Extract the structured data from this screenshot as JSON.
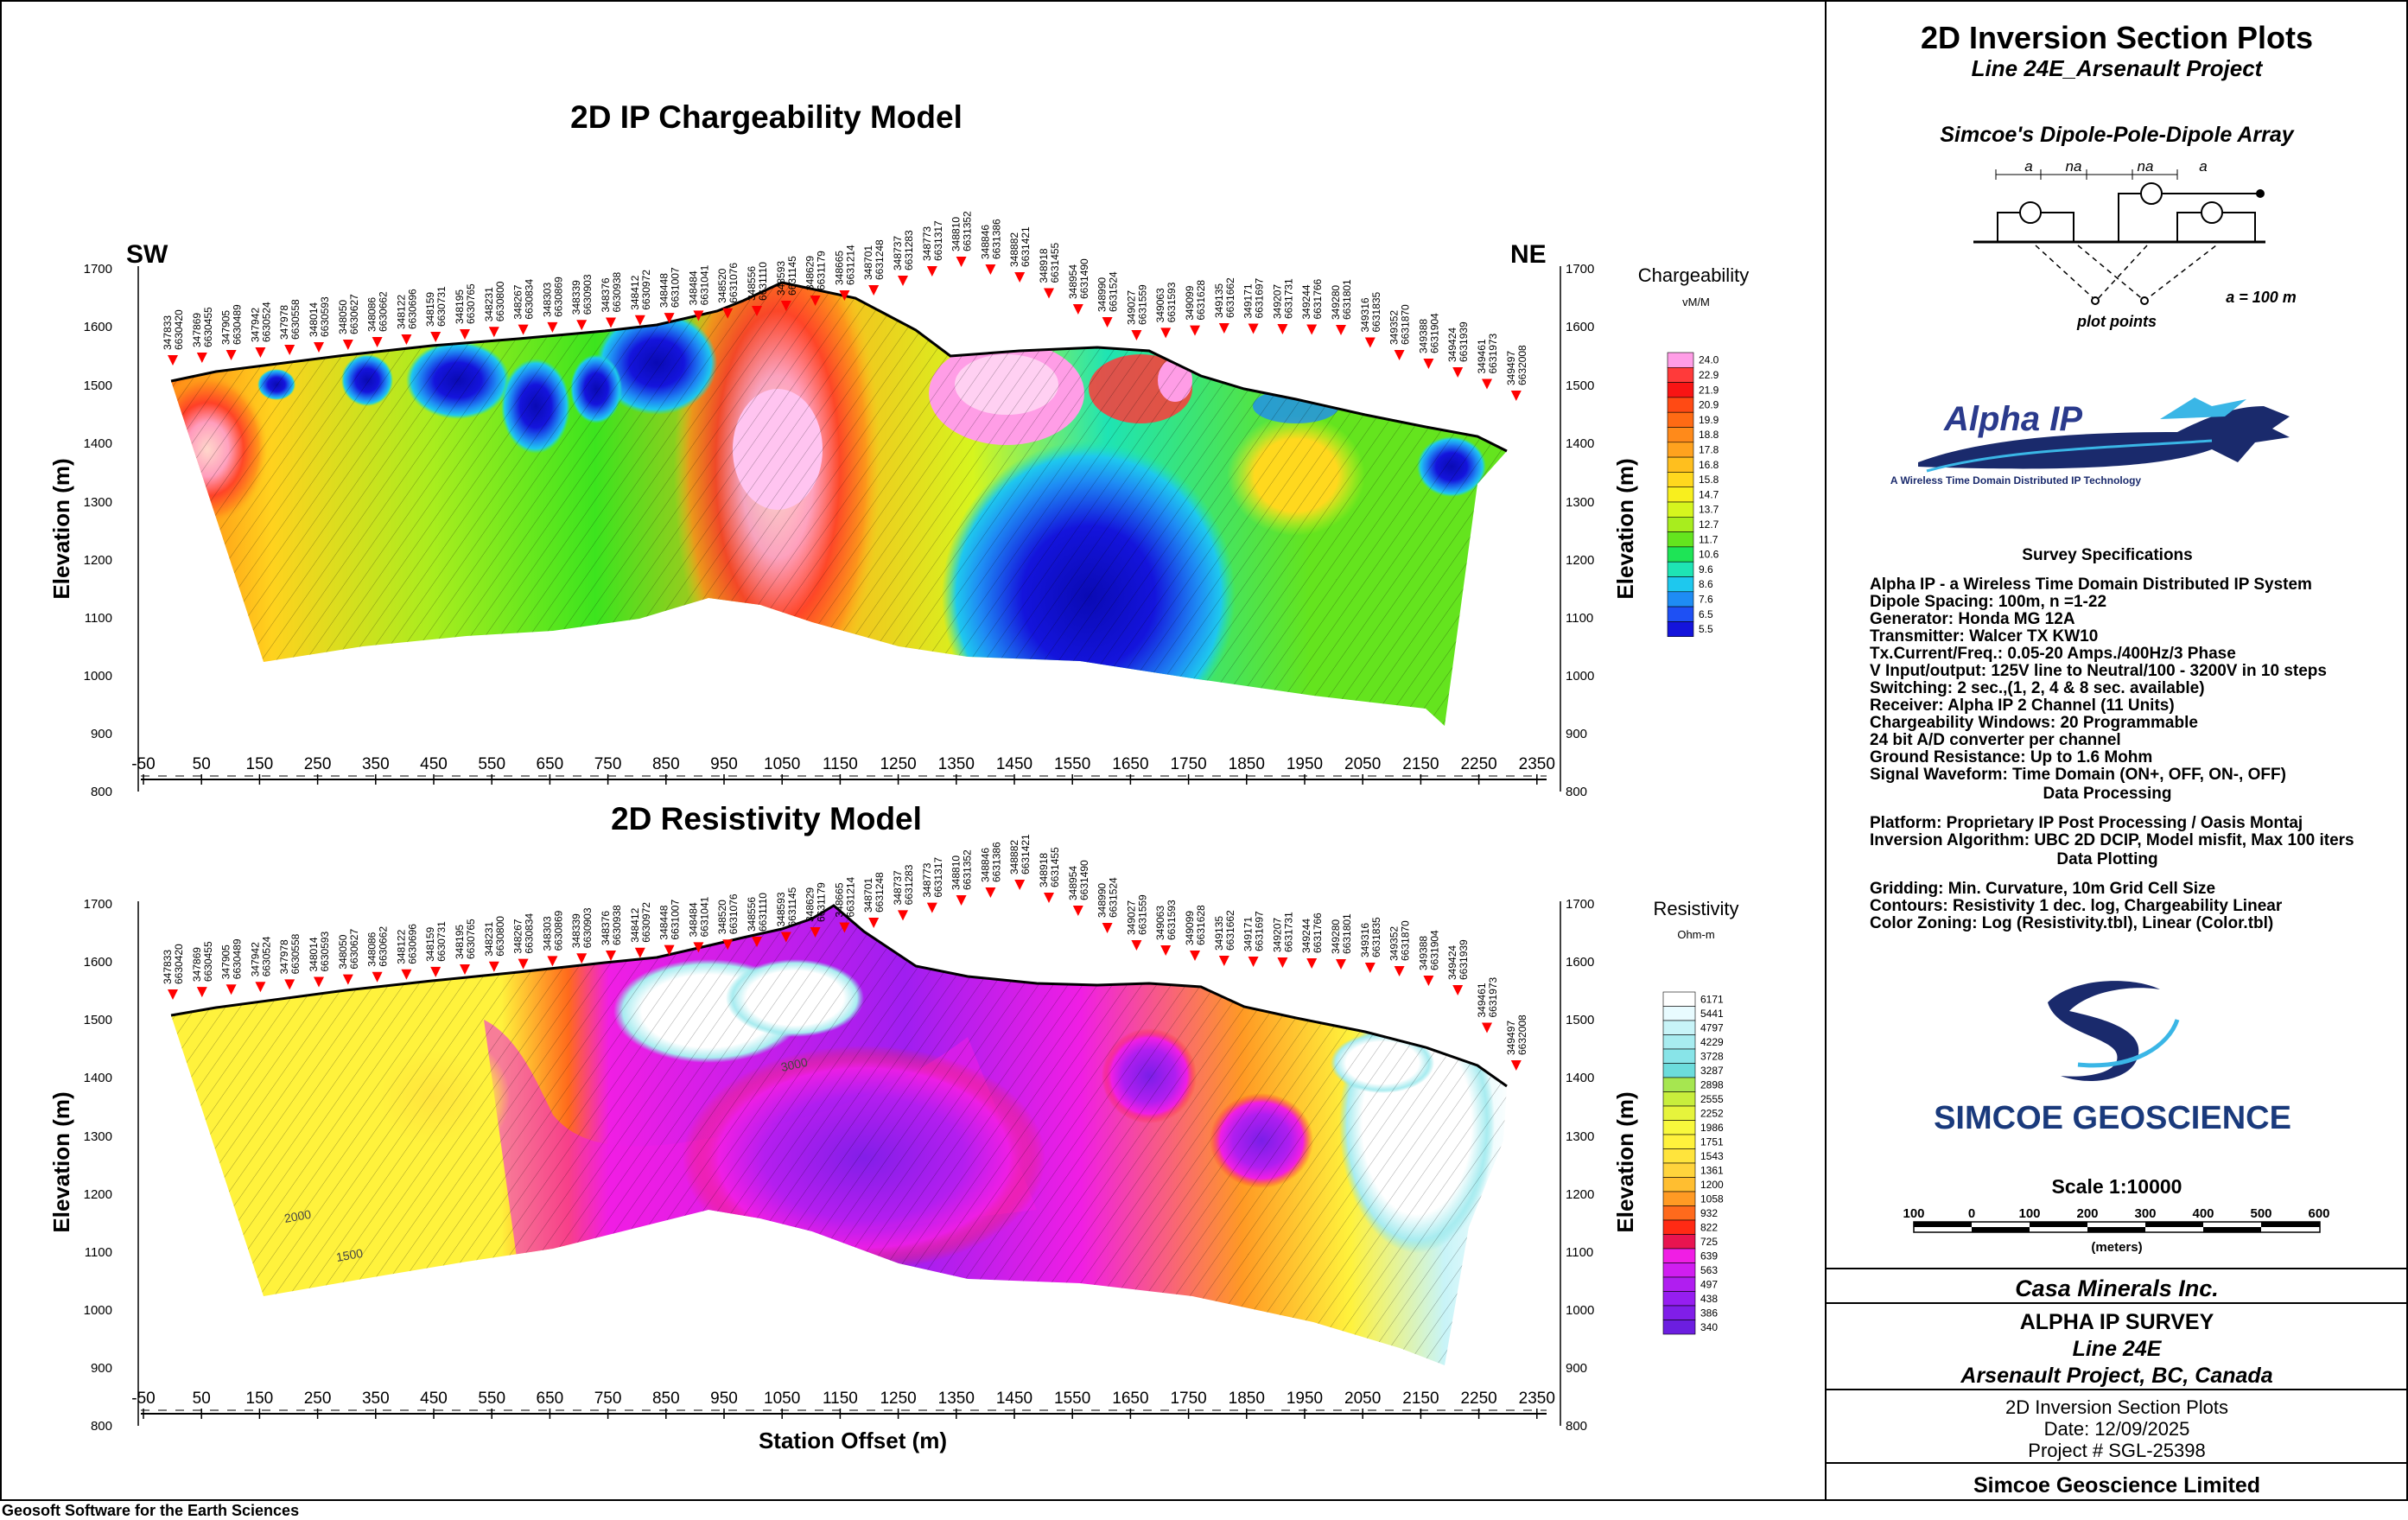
{
  "sheet": {
    "footer": "Geosoft Software for the Earth Sciences"
  },
  "chargeability_panel": {
    "title": "2D IP Chargeability Model",
    "left_label": "SW",
    "right_label": "NE",
    "ylabel": "Elevation (m)",
    "y_ticks": [
      "1700",
      "1600",
      "1500",
      "1400",
      "1300",
      "1200",
      "1100",
      "1000",
      "900",
      "800"
    ],
    "x_ticks": [
      "-50",
      "50",
      "150",
      "250",
      "350",
      "450",
      "550",
      "650",
      "750",
      "850",
      "950",
      "1050",
      "1150",
      "1250",
      "1350",
      "1450",
      "1550",
      "1650",
      "1750",
      "1850",
      "1950",
      "2050",
      "2150",
      "2250",
      "2350"
    ],
    "legend_title": "Chargeability",
    "legend_unit": "vM/M",
    "legend_values": [
      "24.0",
      "22.9",
      "21.9",
      "20.9",
      "19.9",
      "18.8",
      "17.8",
      "16.8",
      "15.8",
      "14.7",
      "13.7",
      "12.7",
      "11.7",
      "10.6",
      "9.6",
      "8.6",
      "7.6",
      "6.5",
      "5.5"
    ],
    "legend_colors": [
      "#ff9de6",
      "#ff3a3a",
      "#f81414",
      "#ff4a14",
      "#ff6a14",
      "#ff8a1a",
      "#ffa21e",
      "#ffbf1e",
      "#ffd81e",
      "#f8ef1e",
      "#d6f51e",
      "#a8ed1e",
      "#64e41e",
      "#1ee456",
      "#1ee4b4",
      "#1ec8ee",
      "#1e8cf4",
      "#1e50f4",
      "#1414dc"
    ]
  },
  "resistivity_panel": {
    "title": "2D Resistivity Model",
    "ylabel": "Elevation (m)",
    "xlabel": "Station Offset (m)",
    "y_ticks": [
      "1700",
      "1600",
      "1500",
      "1400",
      "1300",
      "1200",
      "1100",
      "1000",
      "900",
      "800"
    ],
    "x_ticks": [
      "-50",
      "50",
      "150",
      "250",
      "350",
      "450",
      "550",
      "650",
      "750",
      "850",
      "950",
      "1050",
      "1150",
      "1250",
      "1350",
      "1450",
      "1550",
      "1650",
      "1750",
      "1850",
      "1950",
      "2050",
      "2150",
      "2250",
      "2350"
    ],
    "legend_title": "Resistivity",
    "legend_unit": "Ohm-m",
    "legend_values": [
      "6171",
      "5441",
      "4797",
      "4229",
      "3728",
      "3287",
      "2898",
      "2555",
      "2252",
      "1986",
      "1751",
      "1543",
      "1361",
      "1200",
      "1058",
      "932",
      "822",
      "725",
      "639",
      "563",
      "497",
      "438",
      "386",
      "340"
    ],
    "legend_colors": [
      "#ffffff",
      "#e8fbff",
      "#c8f4f8",
      "#a8ecf0",
      "#88e4e8",
      "#6cdcdc",
      "#a6e650",
      "#c8ee3c",
      "#e6f43c",
      "#f8f83c",
      "#fff23c",
      "#ffe43c",
      "#ffd43c",
      "#ffbe30",
      "#ff9a24",
      "#ff6a1c",
      "#ff2a14",
      "#e81450",
      "#f01ee4",
      "#d01ef0",
      "#b01ef0",
      "#961ef0",
      "#801ee8",
      "#6c1ee0"
    ],
    "contour_labels": [
      "3000",
      "2000",
      "1500"
    ]
  },
  "stations": [
    "347833 6630420",
    "347869 6630455",
    "347905 6630489",
    "347942 6630524",
    "347978 6630558",
    "348014 6630593",
    "348050 6630627",
    "348086 6630662",
    "348122 6630696",
    "348159 6630731",
    "348195 6630765",
    "348231 6630800",
    "348267 6630834",
    "348303 6630869",
    "348339 6630903",
    "348376 6630938",
    "348412 6630972",
    "348448 6631007",
    "348484 6631041",
    "348520 6631076",
    "348556 6631110",
    "348593 6631145",
    "348629 6631179",
    "348665 6631214",
    "348701 6631248",
    "348737 6631283",
    "348773 6631317",
    "348810 6631352",
    "348846 6631386",
    "348882 6631421",
    "348918 6631455",
    "348954 6631490",
    "348990 6631524",
    "349027 6631559",
    "349063 6631593",
    "349099 6631628",
    "349135 6631662",
    "349171 6631697",
    "349207 6631731",
    "349244 6631766",
    "349280 6631801",
    "349316 6631835",
    "349352 6631870",
    "349388 6631904",
    "349424 6631939",
    "349461 6631973",
    "349497 6632008"
  ],
  "title_block": {
    "main_title": "2D Inversion Section Plots",
    "subtitle": "Line 24E_Arsenault Project",
    "array_title": "Simcoe's Dipole-Pole-Dipole Array",
    "array_labels": [
      "a",
      "na",
      "na",
      "a"
    ],
    "plot_points": "plot points",
    "a_value": "a = 100 m",
    "alpha_logo": "Alpha IP",
    "alpha_tagline": "A Wireless Time Domain Distributed IP Technology",
    "survey_specs_heading": "Survey Specifications",
    "survey_specs": [
      "Alpha IP - a Wireless  Time Domain Distributed IP System",
      "Dipole Spacing: 100m, n =1-22",
      "Generator: Honda MG 12A",
      "Transmitter: Walcer TX KW10",
      "Tx.Current/Freq.: 0.05-20 Amps./400Hz/3 Phase",
      "V Input/output: 125V line to Neutral/100 - 3200V in 10 steps",
      "Switching: 2 sec.,(1, 2, 4 & 8 sec. available)",
      "Receiver: Alpha IP 2 Channel (11 Units)",
      "Chargeability Windows: 20 Programmable",
      "24 bit A/D converter per channel",
      "Ground Resistance: Up to 1.6 Mohm",
      "Signal Waveform: Time Domain (ON+, OFF, ON-, OFF)"
    ],
    "data_processing_heading": "Data Processing",
    "data_processing": [
      "Platform: Proprietary IP Post Processing / Oasis Montaj",
      "Inversion Algorithm: UBC 2D DCIP, Model misfit, Max 100 iters"
    ],
    "data_plotting_heading": "Data Plotting",
    "data_plotting": [
      "Gridding: Min. Curvature, 10m Grid Cell Size",
      "Contours: Resistivity 1 dec. log, Chargeability Linear",
      "Color Zoning: Log (Resistivity.tbl), Linear (Color.tbl)"
    ],
    "simcoe_logo": "SIMCOE GEOSCIENCE",
    "scale_label": "Scale 1:10000",
    "scale_ticks": [
      "100",
      "0",
      "100",
      "200",
      "300",
      "400",
      "500",
      "600"
    ],
    "scale_unit": "(meters)",
    "client": "Casa Minerals Inc.",
    "survey_name": "ALPHA IP SURVEY",
    "line": "Line 24E",
    "project": "Arsenault Project, BC, Canada",
    "plot_type": "2D Inversion Section Plots",
    "date": "Date: 12/09/2025",
    "project_number": "Project # SGL-25398",
    "company": "Simcoe Geoscience Limited"
  }
}
